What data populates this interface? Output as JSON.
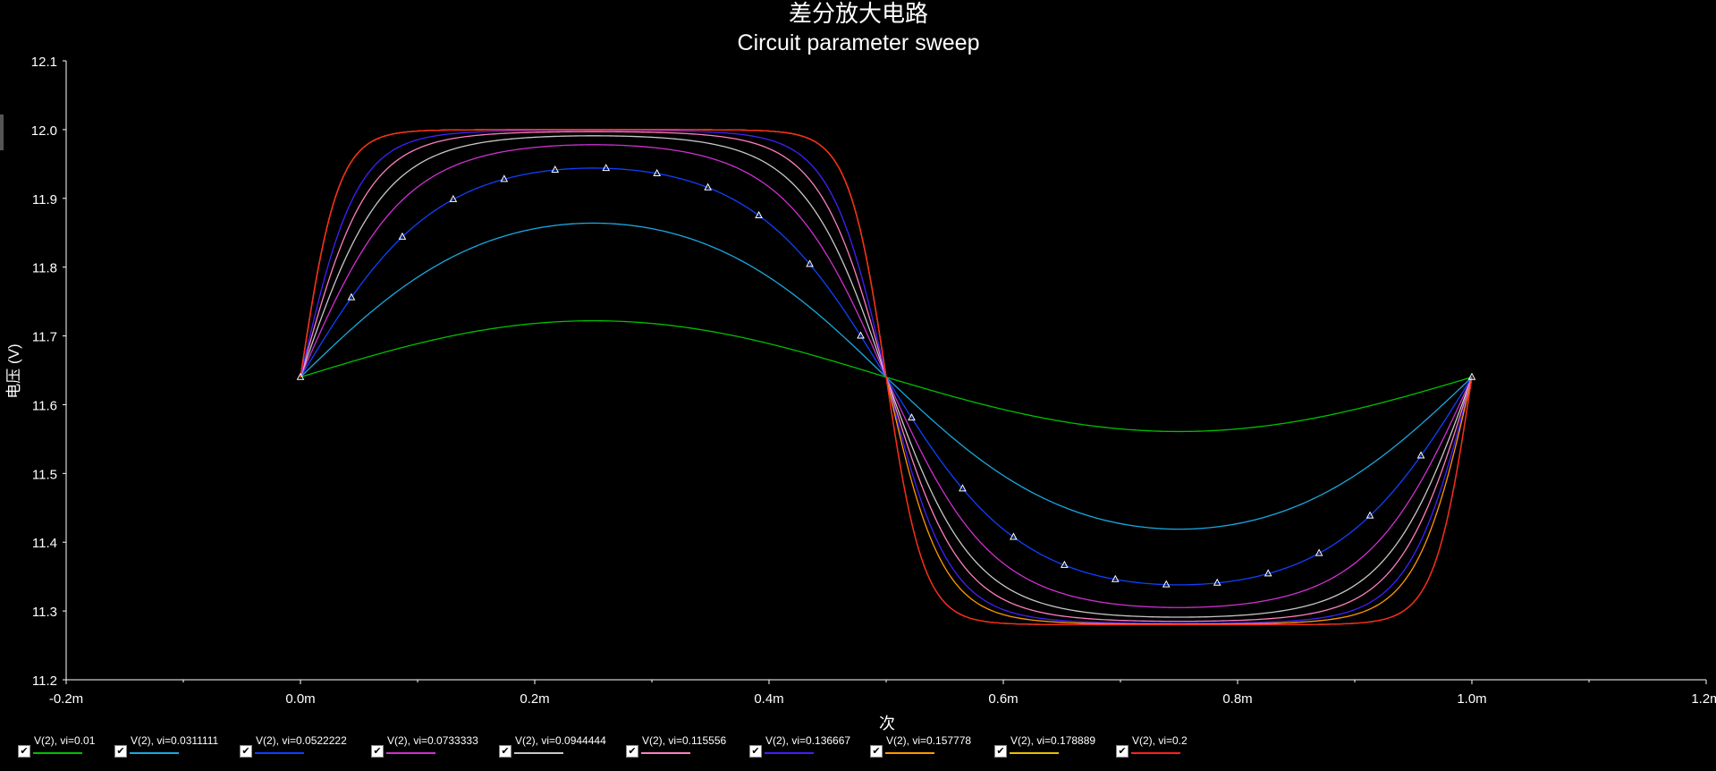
{
  "title_cn": "差分放大电路",
  "title_en": "Circuit parameter sweep",
  "chart_data": {
    "type": "line",
    "title": "Circuit parameter sweep",
    "xlabel": "次",
    "ylabel": "电压 (V)",
    "xlim": [
      -0.0002,
      0.0012
    ],
    "ylim": [
      11.2,
      12.1
    ],
    "x_ticks": [
      "-0.2m",
      "0.0m",
      "0.2m",
      "0.4m",
      "0.6m",
      "0.8m",
      "1.0m",
      "1.2m"
    ],
    "x_tick_values": [
      -0.0002,
      0,
      0.0002,
      0.0004,
      0.0006,
      0.0008,
      0.001,
      0.0012
    ],
    "y_ticks": [
      "11.2",
      "11.3",
      "11.4",
      "11.5",
      "11.6",
      "11.7",
      "11.8",
      "11.9",
      "12.0",
      "12.1"
    ],
    "y_tick_values": [
      11.2,
      11.3,
      11.4,
      11.5,
      11.6,
      11.7,
      11.8,
      11.9,
      12.0,
      12.1
    ],
    "waveform": "sine input, period 1.0m, output saturates between 11.28 V and 12.0 V, centered at 11.64 V",
    "offset": 11.64,
    "upper_limit": 12.0,
    "lower_limit": 11.28,
    "marked_series_index": 2,
    "series": [
      {
        "name": "V(2),  vi=0.01",
        "color": "#00c000",
        "peak": 11.722,
        "trough": 11.561
      },
      {
        "name": "V(2),  vi=0.0311111",
        "color": "#1aa8e0",
        "peak": 11.864,
        "trough": 11.419
      },
      {
        "name": "V(2),  vi=0.0522222",
        "color": "#1040ff",
        "peak": 11.944,
        "trough": 11.338
      },
      {
        "name": "V(2),  vi=0.0733333",
        "color": "#d030d0",
        "peak": 11.978,
        "trough": 11.305
      },
      {
        "name": "V(2),  vi=0.0944444",
        "color": "#c8c8c8",
        "peak": 11.991,
        "trough": 11.291
      },
      {
        "name": "V(2),  vi=0.115556",
        "color": "#ff80c0",
        "peak": 11.997,
        "trough": 11.285
      },
      {
        "name": "V(2),  vi=0.136667",
        "color": "#4020ff",
        "peak": 11.999,
        "trough": 11.282
      },
      {
        "name": "V(2),  vi=0.157778",
        "color": "#ff9900",
        "peak": 12.0,
        "trough": 11.281
      },
      {
        "name": "V(2),  vi=0.178889",
        "color": "#e8c000",
        "peak": 12.0,
        "trough": 11.28
      },
      {
        "name": "V(2),  vi=0.2",
        "color": "#ff2020",
        "peak": 12.0,
        "trough": 11.28
      }
    ]
  },
  "legend": [
    {
      "label": "V(2),  vi=0.01",
      "checked": true
    },
    {
      "label": "V(2),  vi=0.0311111",
      "checked": true
    },
    {
      "label": "V(2),  vi=0.0522222",
      "checked": true
    },
    {
      "label": "V(2),  vi=0.0733333",
      "checked": true
    },
    {
      "label": "V(2),  vi=0.0944444",
      "checked": true
    },
    {
      "label": "V(2),  vi=0.115556",
      "checked": true
    },
    {
      "label": "V(2),  vi=0.136667",
      "checked": true
    },
    {
      "label": "V(2),  vi=0.157778",
      "checked": true
    },
    {
      "label": "V(2),  vi=0.178889",
      "checked": true
    },
    {
      "label": "V(2),  vi=0.2",
      "checked": true
    }
  ]
}
